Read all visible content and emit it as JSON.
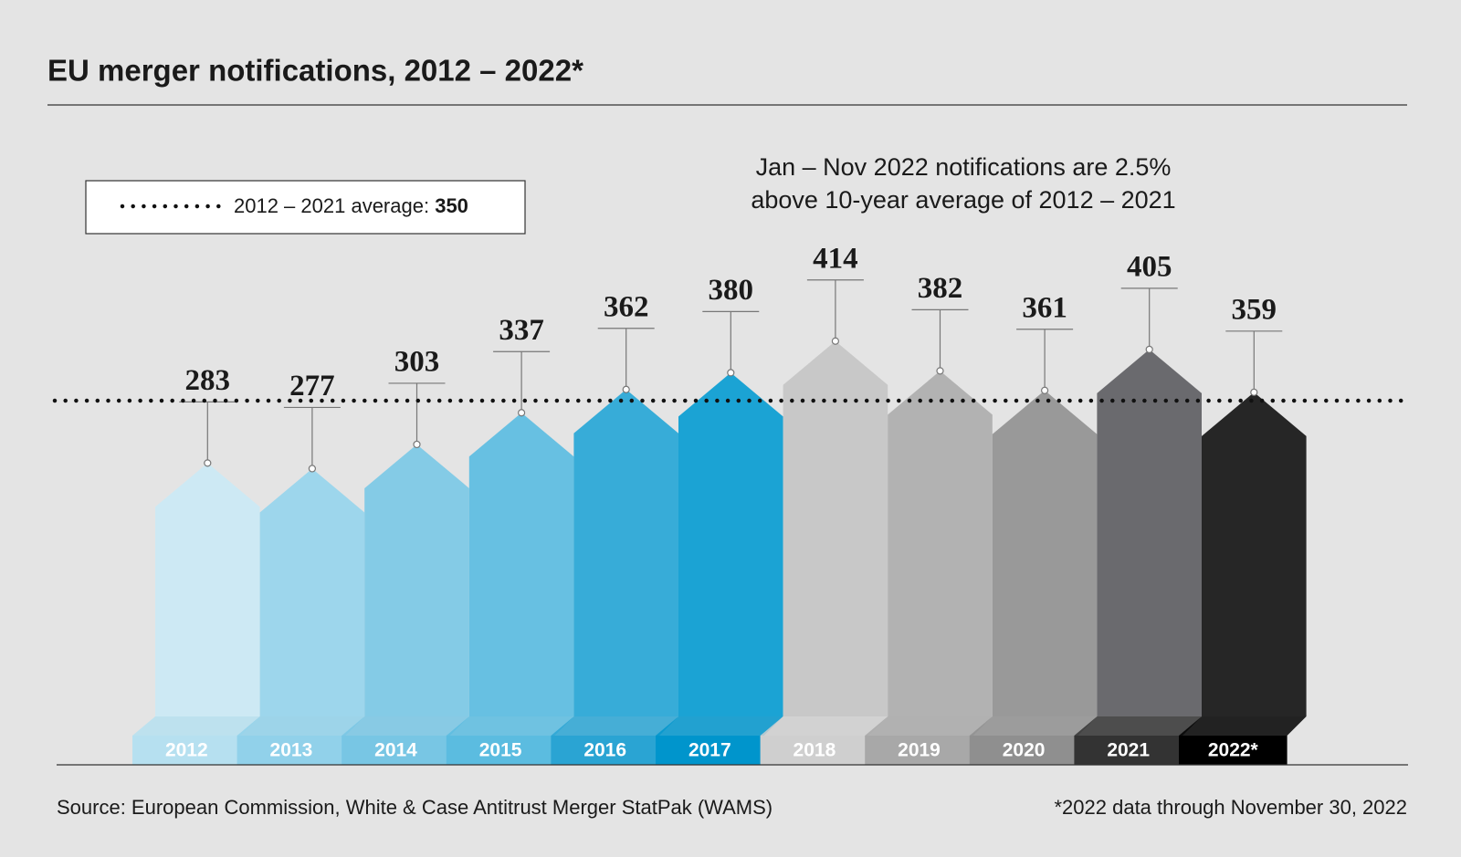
{
  "chart_data": {
    "type": "arrow-bar",
    "title": "EU merger notifications, 2012 – 2022*",
    "annotation": [
      "Jan – Nov 2022 notifications are 2.5%",
      "above 10-year average of 2012 – 2021"
    ],
    "average_label": "2012 – 2021 average:",
    "average": 350,
    "categories": [
      "2012",
      "2013",
      "2014",
      "2015",
      "2016",
      "2017",
      "2018",
      "2019",
      "2020",
      "2021",
      "2022*"
    ],
    "values": [
      283,
      277,
      303,
      337,
      362,
      380,
      414,
      382,
      361,
      405,
      359
    ],
    "colors": [
      "#cde9f4",
      "#9dd6ec",
      "#84cbe6",
      "#67c0e2",
      "#37acd8",
      "#1ba3d4",
      "#c8c8c8",
      "#b2b2b2",
      "#999999",
      "#6a6a6e",
      "#262626"
    ],
    "band_colors": [
      "#b6e0f0",
      "#91d1ea",
      "#78c6e4",
      "#5bbce0",
      "#2aa4d3",
      "#0095cc",
      "#cfcfcf",
      "#a8a8a8",
      "#8f8f8f",
      "#333333",
      "#000000"
    ],
    "source": "Source: European Commission, White & Case Antitrust Merger StatPak (WAMS)",
    "footnote": "*2022 data through November 30, 2022"
  }
}
